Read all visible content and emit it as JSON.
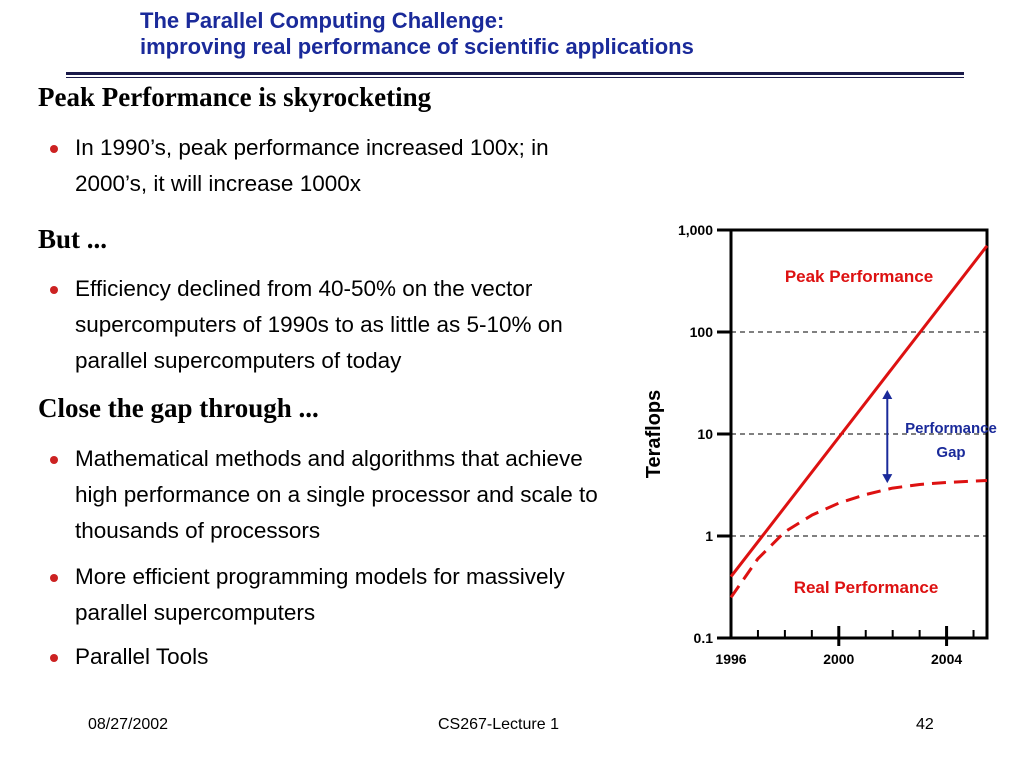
{
  "slide": {
    "title_line1": "The Parallel Computing Challenge:",
    "title_line2": "improving real performance of scientific applications",
    "sections": [
      {
        "heading": "Peak Performance is skyrocketing",
        "bullets": [
          "In 1990’s, peak performance increased 100x; in 2000’s, it will increase 1000x"
        ]
      },
      {
        "heading": "But ...",
        "bullets": [
          "Efficiency declined from 40-50% on the vector supercomputers of 1990s to as little as 5-10% on parallel supercomputers of today"
        ]
      },
      {
        "heading": "Close the gap through ...",
        "bullets": [
          "Mathematical methods and algorithms that achieve high performance on a single processor and scale to thousands of processors",
          "More efficient programming models for massively parallel supercomputers",
          "Parallel Tools"
        ]
      }
    ],
    "footer": {
      "date": "08/27/2002",
      "course": "CS267-Lecture 1",
      "page": "42"
    }
  },
  "chart_data": {
    "type": "line",
    "title": "",
    "xlabel": "",
    "ylabel": "Teraflops",
    "y_scale": "log",
    "ylim": [
      0.1,
      1000
    ],
    "xlim": [
      1996,
      2005.5
    ],
    "y_ticks": [
      {
        "value": 0.1,
        "label": "0.1"
      },
      {
        "value": 1,
        "label": "1"
      },
      {
        "value": 10,
        "label": "10"
      },
      {
        "value": 100,
        "label": "100"
      },
      {
        "value": 1000,
        "label": "1,000"
      }
    ],
    "x_tick_labels": [
      {
        "value": 1996,
        "label": "1996"
      },
      {
        "value": 2000,
        "label": "2000"
      },
      {
        "value": 2004,
        "label": "2004"
      }
    ],
    "x_minor_ticks": [
      1997,
      1998,
      1999,
      2001,
      2002,
      2003,
      2005
    ],
    "grid": "dashed horizontal at 1, 10, 100",
    "series": [
      {
        "name": "Peak Performance",
        "style": "solid",
        "color": "#dd1111",
        "x": [
          1996,
          2005.5
        ],
        "y": [
          0.4,
          700
        ]
      },
      {
        "name": "Real Performance",
        "style": "dashed",
        "color": "#dd1111",
        "x": [
          1996,
          1997,
          1998,
          1999,
          2000,
          2001,
          2002,
          2003,
          2004,
          2005,
          2005.5
        ],
        "y": [
          0.25,
          0.6,
          1.1,
          1.6,
          2.1,
          2.55,
          2.95,
          3.2,
          3.35,
          3.45,
          3.5
        ]
      }
    ],
    "annotation": {
      "label_line1": "Performance",
      "label_line2": "Gap",
      "x": 2001.8,
      "y_top": 27,
      "y_bottom": 3.3,
      "color": "#1a2a9a"
    }
  }
}
